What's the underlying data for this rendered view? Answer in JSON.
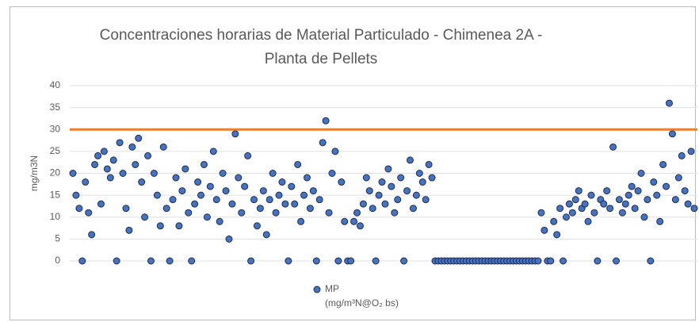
{
  "chart_data": {
    "type": "scatter",
    "title": "Concentraciones horarias de Material Particulado - Chimenea 2A - Planta de Pellets",
    "y_label": "mg/m3N",
    "ylim": [
      0,
      40
    ],
    "yticks": [
      0,
      5,
      10,
      15,
      20,
      25,
      30,
      35,
      40
    ],
    "grid": true,
    "reference_line": {
      "value": 30,
      "color": "#ed7d31"
    },
    "legend": "bottom",
    "series": [
      {
        "name": "MP",
        "unit": "(mg/m³N@O₂ bs)",
        "color": "#4472c4",
        "values": [
          20,
          15,
          12,
          0,
          18,
          11,
          6,
          22,
          24,
          13,
          25,
          21,
          19,
          23,
          0,
          27,
          20,
          12,
          7,
          26,
          22,
          28,
          18,
          10,
          24,
          0,
          20,
          15,
          8,
          26,
          12,
          0,
          14,
          19,
          8,
          16,
          21,
          11,
          0,
          13,
          18,
          15,
          22,
          10,
          17,
          25,
          14,
          9,
          20,
          16,
          5,
          13,
          29,
          19,
          11,
          17,
          24,
          0,
          14,
          8,
          12,
          16,
          6,
          14,
          20,
          11,
          15,
          18,
          13,
          0,
          17,
          13,
          22,
          9,
          15,
          19,
          12,
          16,
          0,
          14,
          27,
          32,
          11,
          20,
          25,
          0,
          18,
          9,
          0,
          0,
          9,
          11,
          8,
          13,
          19,
          16,
          12,
          0,
          15,
          18,
          13,
          21,
          17,
          11,
          14,
          19,
          0,
          16,
          23,
          12,
          15,
          20,
          18,
          14,
          22,
          19,
          0,
          0,
          0,
          0,
          0,
          0,
          0,
          0,
          0,
          0,
          0,
          0,
          0,
          0,
          0,
          0,
          0,
          0,
          0,
          0,
          0,
          0,
          0,
          0,
          0,
          0,
          0,
          0,
          0,
          0,
          0,
          0,
          0,
          0,
          11,
          7,
          0,
          0,
          9,
          6,
          12,
          0,
          10,
          13,
          11,
          14,
          16,
          12,
          13,
          9,
          15,
          11,
          0,
          14,
          13,
          16,
          12,
          26,
          0,
          14,
          11,
          13,
          15,
          17,
          12,
          16,
          20,
          10,
          14,
          0,
          18,
          15,
          9,
          22,
          17,
          36,
          29,
          14,
          19,
          24,
          16,
          13,
          25,
          12
        ]
      }
    ]
  }
}
